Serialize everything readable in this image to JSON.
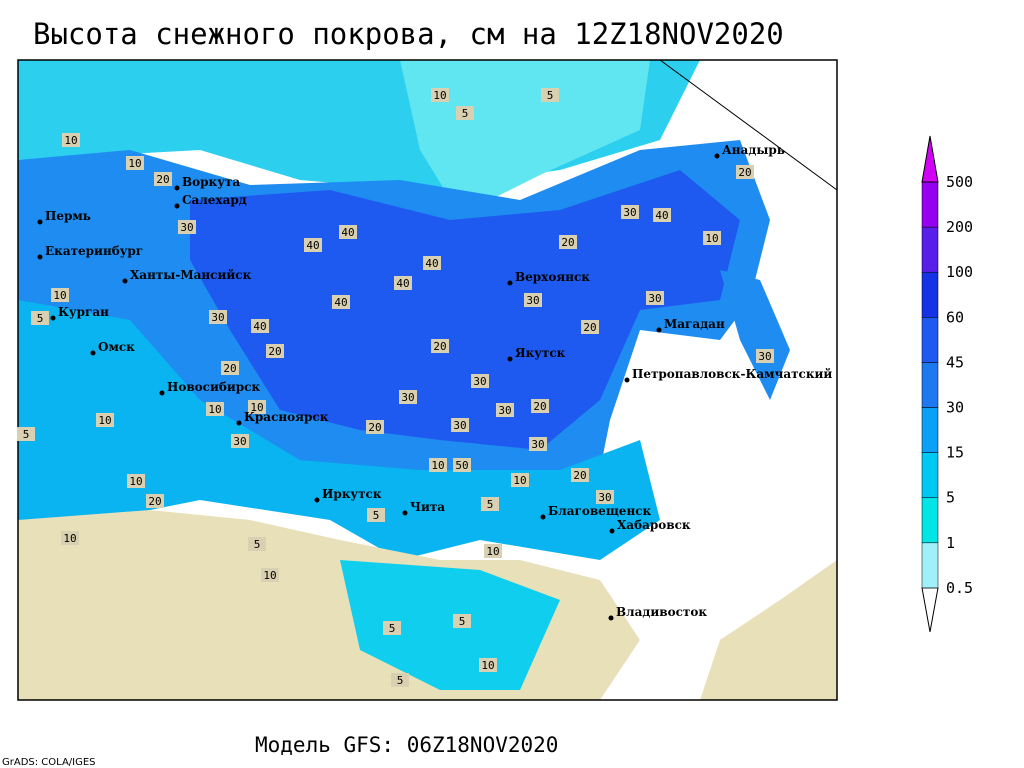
{
  "map": {
    "title": "Высота снежного покрова, см на 12Z18NOV2020",
    "footer": "Модель GFS: 06Z18NOV2020",
    "credit": "GrADS: COLA/IGES",
    "cities": [
      "Воркута",
      "Салехард",
      "Пермь",
      "Екатеринбург",
      "Ханты-Мансийск",
      "Курган",
      "Омск",
      "Новосибирск",
      "Красноярск",
      "Иркутск",
      "Чита",
      "Благовещенск",
      "Хабаровск",
      "Владивосток",
      "Якутск",
      "Верхоянск",
      "Магадан",
      "Петропавловск-Камчатский",
      "Анадырь"
    ],
    "contour_labels": [
      10,
      5,
      5,
      10,
      10,
      20,
      30,
      40,
      40,
      40,
      40,
      40,
      40,
      30,
      20,
      20,
      20,
      30,
      30,
      30,
      20,
      20,
      30,
      30,
      10,
      50,
      10,
      20,
      30,
      5,
      10,
      5,
      10,
      10,
      30,
      10,
      20,
      10,
      5,
      10,
      5,
      5,
      10,
      5,
      20,
      30,
      20,
      30,
      40,
      30,
      10,
      20,
      30,
      5,
      10,
      10,
      5
    ],
    "colorbar": {
      "levels": [
        0.5,
        1,
        5,
        15,
        30,
        45,
        60,
        100,
        200,
        500
      ],
      "colors": [
        "#ffffff",
        "#a0f0fa",
        "#00e6e6",
        "#00c8f5",
        "#0aa0f5",
        "#1e78f0",
        "#1e5af0",
        "#1432e6",
        "#5a1eeb",
        "#9600f0",
        "#d200f5"
      ]
    }
  }
}
